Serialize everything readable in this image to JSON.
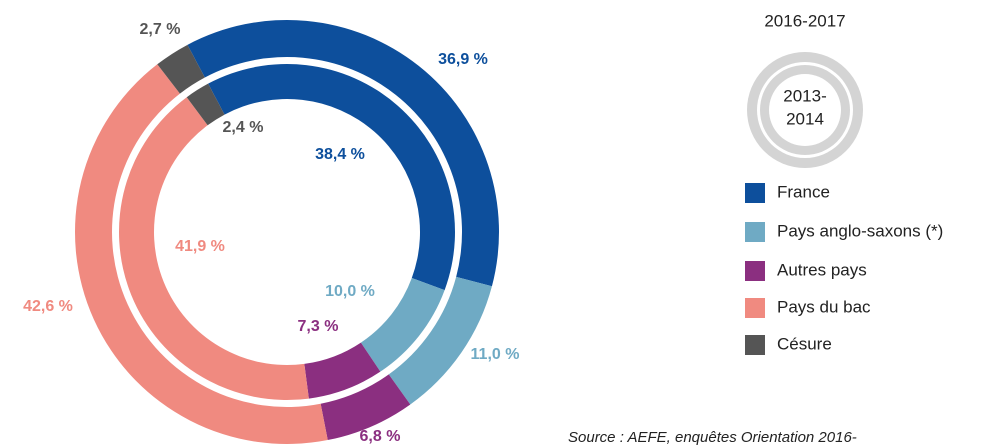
{
  "chart_data": {
    "type": "nested-donut",
    "categories": [
      "France",
      "Pays anglo-saxons (*)",
      "Autres pays",
      "Pays du bac",
      "Césure"
    ],
    "colors": [
      "#0d4f9c",
      "#6faac4",
      "#8b2f80",
      "#f08a80",
      "#555555"
    ],
    "series": [
      {
        "name": "2016-2017",
        "values": [
          36.9,
          11.0,
          6.8,
          42.6,
          2.7
        ],
        "value_labels": [
          "36,9 %",
          "11,0 %",
          "6,8 %",
          "42,6 %",
          "2,7 %"
        ]
      },
      {
        "name_lines": [
          "2013-",
          "2014"
        ],
        "values": [
          38.4,
          10.0,
          7.3,
          41.9,
          2.4
        ],
        "value_labels": [
          "38,4 %",
          "10,0 %",
          "7,3 %",
          "41,9 %",
          "2,4 %"
        ]
      }
    ],
    "source": "Source : AEFE, enquêtes Orientation 2016-"
  }
}
